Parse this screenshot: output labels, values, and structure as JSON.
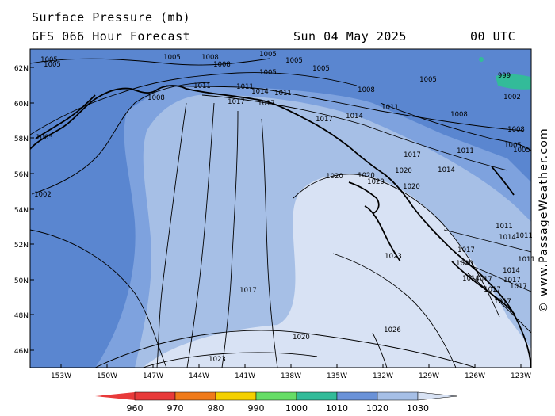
{
  "header": {
    "title": "Surface Pressure (mb)",
    "subtitle": "GFS 066 Hour Forecast",
    "date": "Sun 04 May 2025",
    "time": "00 UTC"
  },
  "credit": "© www.PassageWeather.com",
  "map": {
    "lat_labels": [
      "62N",
      "60N",
      "58N",
      "56N",
      "54N",
      "52N",
      "50N",
      "48N",
      "46N"
    ],
    "lon_labels": [
      "153W",
      "150W",
      "147W",
      "144W",
      "141W",
      "138W",
      "135W",
      "132W",
      "129W",
      "126W",
      "123W"
    ]
  },
  "colorbar": {
    "ticks": [
      "960",
      "970",
      "980",
      "990",
      "1000",
      "1010",
      "1020",
      "1030"
    ],
    "colors": [
      "#e83a3a",
      "#f07a1a",
      "#f4d000",
      "#66dd66",
      "#33bb99",
      "#6a92d8",
      "#a6bfe6",
      "#d8e2f4"
    ]
  },
  "contour_labels": [
    "1005",
    "1005",
    "1008",
    "1008",
    "1005",
    "1005",
    "1005",
    "1005",
    "1005",
    "1011",
    "1011",
    "1014",
    "1011",
    "1008",
    "1011",
    "1008",
    "1005",
    "999",
    "1002",
    "1017",
    "1017",
    "1014",
    "1008",
    "1005",
    "1005",
    "1017",
    "1014",
    "1005",
    "1020",
    "1020",
    "1020",
    "1020",
    "1020",
    "1017",
    "1011",
    "1014",
    "1011",
    "1002",
    "1008",
    "1014",
    "1011",
    "1017",
    "1020",
    "1017",
    "1017",
    "1014",
    "1017",
    "1017",
    "1017",
    "1011",
    "1023",
    "1017",
    "1020",
    "1023",
    "1026"
  ]
}
